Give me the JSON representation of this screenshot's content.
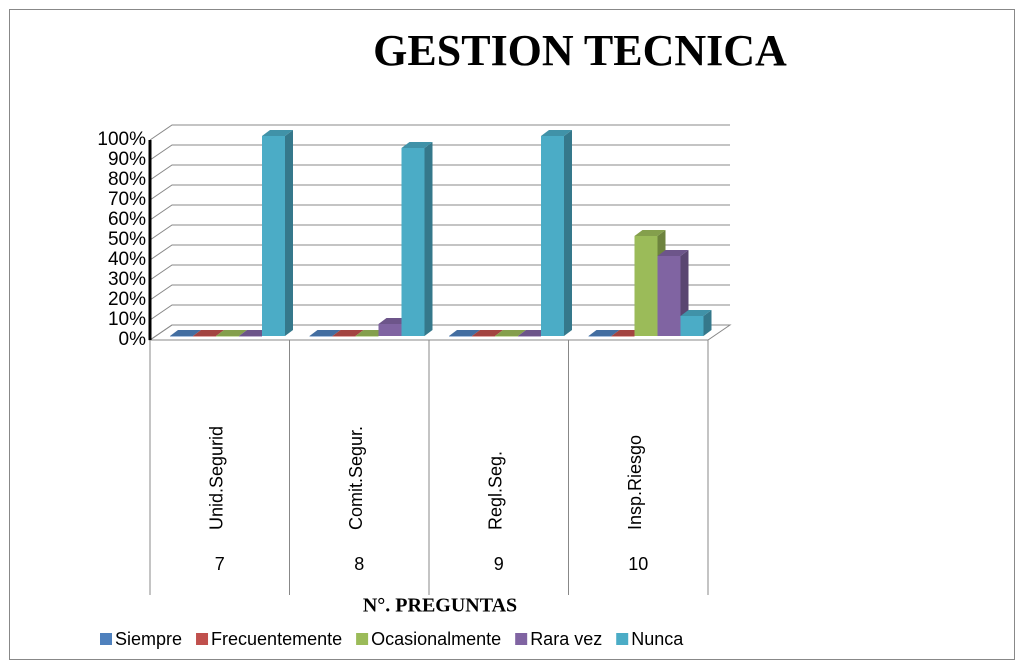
{
  "chart_data": {
    "type": "bar3d",
    "title": "GESTION TECNICA",
    "x_label": "N°. PREGUNTAS",
    "categories": [
      "Unid.Segurid",
      "Comit.Segur.",
      "Regl.Seg.",
      "Insp.Riesgo"
    ],
    "category_numbers": [
      "7",
      "8",
      "9",
      "10"
    ],
    "series": [
      {
        "name": "Siempre",
        "color": "#4f81bd",
        "values": [
          0,
          0,
          0,
          0
        ]
      },
      {
        "name": "Frecuentemente",
        "color": "#c0504d",
        "values": [
          0,
          0,
          0,
          0
        ]
      },
      {
        "name": "Ocasionalmente",
        "color": "#9bbb59",
        "values": [
          0,
          0,
          0,
          50
        ]
      },
      {
        "name": "Rara vez",
        "color": "#8064a2",
        "values": [
          0,
          6,
          0,
          40
        ]
      },
      {
        "name": "Nunca",
        "color": "#4bacc6",
        "values": [
          100,
          94,
          100,
          10
        ]
      }
    ],
    "ylim": [
      0,
      100
    ],
    "yticks": [
      {
        "value": 0,
        "label": "0%"
      },
      {
        "value": 10,
        "label": "10%"
      },
      {
        "value": 20,
        "label": "20%"
      },
      {
        "value": 30,
        "label": "30%"
      },
      {
        "value": 40,
        "label": "40%"
      },
      {
        "value": 50,
        "label": "50%"
      },
      {
        "value": 60,
        "label": "60%"
      },
      {
        "value": 70,
        "label": "70%"
      },
      {
        "value": 80,
        "label": "80%"
      },
      {
        "value": 90,
        "label": "90%"
      },
      {
        "value": 100,
        "label": "100%"
      }
    ],
    "grid": true,
    "legend": "bottom"
  }
}
